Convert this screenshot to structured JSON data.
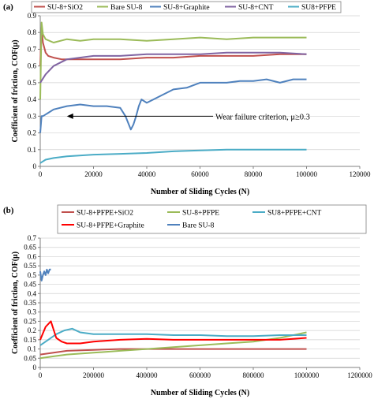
{
  "chart_data": [
    {
      "type": "line",
      "panel_label": "(a)",
      "xlabel": "Number of  Sliding Cycles (N)",
      "ylabel": "Coefficient of friction, COF(μ)",
      "xlim": [
        0,
        120000
      ],
      "ylim": [
        0,
        0.9
      ],
      "x_ticks": [
        0,
        20000,
        40000,
        60000,
        80000,
        100000,
        120000
      ],
      "y_ticks": [
        0,
        0.1,
        0.2,
        0.3,
        0.4,
        0.5,
        0.6,
        0.7,
        0.8,
        0.9
      ],
      "x_tick_labels": [
        "0",
        "20000",
        "40000",
        "60000",
        "80000",
        "100000",
        "120000"
      ],
      "y_tick_labels": [
        "0",
        "0.1",
        "0.2",
        "0.3",
        "0.4",
        "0.5",
        "0.6",
        "0.7",
        "0.8",
        "0.9"
      ],
      "grid": "horizontal",
      "legend_position": "top",
      "annotation": {
        "text": "Wear failure criterion, μ≥0.3",
        "arrow_to": [
          10000,
          0.3
        ]
      },
      "series": [
        {
          "name": "SU-8+SiO2",
          "color": "#c0504d",
          "x": [
            0,
            500,
            1000,
            2000,
            3000,
            5000,
            8000,
            12000,
            20000,
            30000,
            40000,
            50000,
            60000,
            70000,
            80000,
            90000,
            100000
          ],
          "y": [
            0.6,
            0.83,
            0.74,
            0.68,
            0.66,
            0.65,
            0.64,
            0.64,
            0.64,
            0.64,
            0.65,
            0.65,
            0.66,
            0.66,
            0.66,
            0.67,
            0.67
          ]
        },
        {
          "name": "Bare SU-8",
          "color": "#9bbb59",
          "x": [
            0,
            500,
            1000,
            2000,
            5000,
            10000,
            15000,
            20000,
            30000,
            40000,
            50000,
            60000,
            70000,
            80000,
            90000,
            100000
          ],
          "y": [
            0.4,
            0.86,
            0.79,
            0.76,
            0.74,
            0.76,
            0.75,
            0.76,
            0.76,
            0.75,
            0.76,
            0.77,
            0.76,
            0.77,
            0.77,
            0.77
          ]
        },
        {
          "name": "SU-8+Graphite",
          "color": "#4f81bd",
          "x": [
            0,
            500,
            1000,
            2000,
            3000,
            5000,
            10000,
            15000,
            20000,
            25000,
            30000,
            32000,
            34000,
            35000,
            36000,
            37000,
            38000,
            40000,
            45000,
            50000,
            55000,
            60000,
            65000,
            70000,
            75000,
            80000,
            85000,
            90000,
            95000,
            100000
          ],
          "y": [
            0.2,
            0.3,
            0.3,
            0.31,
            0.32,
            0.34,
            0.36,
            0.37,
            0.36,
            0.36,
            0.35,
            0.3,
            0.22,
            0.25,
            0.3,
            0.36,
            0.4,
            0.38,
            0.42,
            0.46,
            0.47,
            0.5,
            0.5,
            0.5,
            0.51,
            0.51,
            0.52,
            0.5,
            0.52,
            0.52
          ]
        },
        {
          "name": "SU-8+CNT",
          "color": "#8064a2",
          "x": [
            0,
            2000,
            5000,
            10000,
            20000,
            30000,
            40000,
            50000,
            60000,
            70000,
            80000,
            90000,
            100000
          ],
          "y": [
            0.5,
            0.55,
            0.6,
            0.64,
            0.66,
            0.66,
            0.67,
            0.67,
            0.67,
            0.68,
            0.68,
            0.68,
            0.67
          ]
        },
        {
          "name": "SU8+PFPE",
          "color": "#4bacc6",
          "x": [
            0,
            2000,
            5000,
            10000,
            20000,
            30000,
            40000,
            50000,
            60000,
            70000,
            80000,
            90000,
            100000
          ],
          "y": [
            0.02,
            0.04,
            0.05,
            0.06,
            0.07,
            0.075,
            0.08,
            0.09,
            0.095,
            0.1,
            0.1,
            0.1,
            0.1
          ]
        }
      ]
    },
    {
      "type": "line",
      "panel_label": "(b)",
      "xlabel": "Number of  Sliding Cycles (N)",
      "ylabel": "Coefficient of friction, COF(μ)",
      "xlim": [
        0,
        1200000
      ],
      "ylim": [
        0,
        0.7
      ],
      "x_ticks": [
        0,
        200000,
        400000,
        600000,
        800000,
        1000000,
        1200000
      ],
      "y_ticks": [
        0,
        0.05,
        0.1,
        0.15,
        0.2,
        0.25,
        0.3,
        0.35,
        0.4,
        0.45,
        0.5,
        0.55,
        0.6,
        0.65,
        0.7
      ],
      "x_tick_labels": [
        "0",
        "200000",
        "400000",
        "600000",
        "800000",
        "1000000",
        "1200000"
      ],
      "y_tick_labels": [
        "0",
        "0.05",
        "0.1",
        "0.15",
        "0.2",
        "0.25",
        "0.3",
        "0.35",
        "0.4",
        "0.45",
        "0.5",
        "0.55",
        "0.6",
        "0.65",
        "0.7"
      ],
      "grid": "horizontal",
      "legend_position": "top",
      "series": [
        {
          "name": "SU-8+PFPE+SiO2",
          "color": "#c0504d",
          "x": [
            0,
            50000,
            100000,
            200000,
            300000,
            400000,
            500000,
            600000,
            700000,
            800000,
            900000,
            1000000
          ],
          "y": [
            0.07,
            0.08,
            0.09,
            0.095,
            0.1,
            0.1,
            0.1,
            0.1,
            0.1,
            0.1,
            0.1,
            0.1
          ]
        },
        {
          "name": "SU-8+PFPE",
          "color": "#9bbb59",
          "x": [
            0,
            50000,
            100000,
            200000,
            300000,
            400000,
            500000,
            600000,
            700000,
            800000,
            900000,
            1000000
          ],
          "y": [
            0.05,
            0.06,
            0.07,
            0.08,
            0.09,
            0.1,
            0.11,
            0.12,
            0.13,
            0.14,
            0.16,
            0.19
          ]
        },
        {
          "name": "SU8+PFPE+CNT",
          "color": "#4bacc6",
          "x": [
            0,
            30000,
            60000,
            90000,
            120000,
            150000,
            200000,
            300000,
            400000,
            500000,
            600000,
            700000,
            800000,
            900000,
            1000000
          ],
          "y": [
            0.12,
            0.15,
            0.18,
            0.2,
            0.21,
            0.19,
            0.18,
            0.18,
            0.18,
            0.175,
            0.175,
            0.17,
            0.17,
            0.175,
            0.175
          ]
        },
        {
          "name": "SU-8+PFPE+Graphite",
          "color": "#ff0000",
          "x": [
            0,
            20000,
            40000,
            60000,
            80000,
            100000,
            150000,
            200000,
            300000,
            400000,
            500000,
            600000,
            700000,
            800000,
            900000,
            1000000
          ],
          "y": [
            0.15,
            0.22,
            0.25,
            0.16,
            0.14,
            0.13,
            0.13,
            0.14,
            0.15,
            0.155,
            0.15,
            0.15,
            0.15,
            0.15,
            0.15,
            0.16
          ]
        },
        {
          "name": "Bare SU-8",
          "color": "#4f81bd",
          "x": [
            0,
            5000,
            10000,
            15000,
            20000,
            25000,
            30000,
            35000,
            40000
          ],
          "y": [
            0.52,
            0.47,
            0.5,
            0.52,
            0.5,
            0.53,
            0.51,
            0.53,
            0.53
          ]
        }
      ]
    }
  ]
}
